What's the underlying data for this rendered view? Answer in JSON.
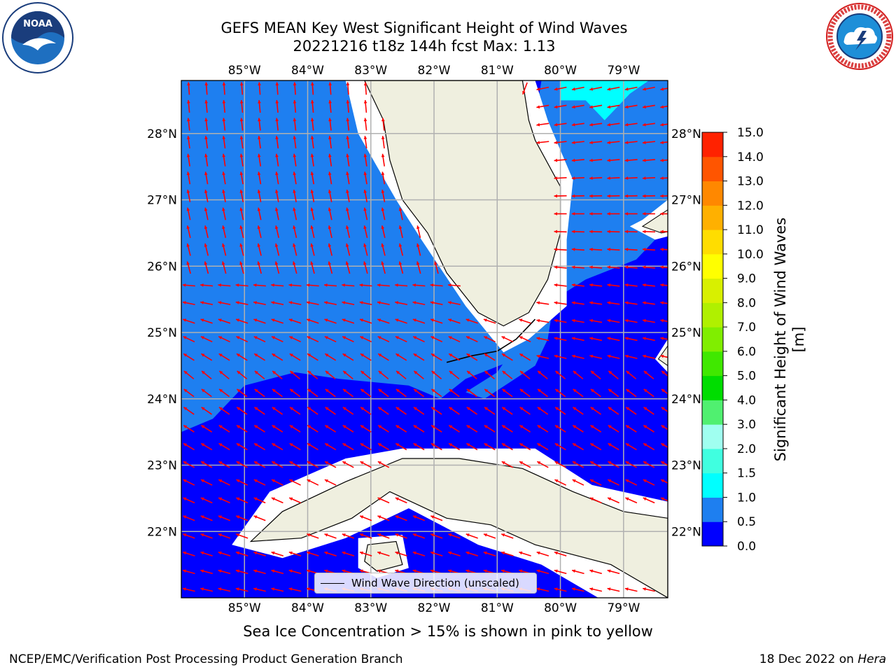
{
  "title_line1": "GEFS MEAN Key West Significant Height of Wind Waves",
  "title_line2": "20221216 t18z 144h fcst   Max: 1.13",
  "footnote": "Sea Ice Concentration > 15% is shown in pink to yellow",
  "credit_left": "NCEP/EMC/Verification Post Processing Product Generation Branch",
  "credit_right_date": "18 Dec 2022 on",
  "credit_right_machine": "Hera",
  "legend_label": "Wind Wave Direction (unscaled)",
  "colorbar_label": "Significant Height of Wind Waves [m]",
  "logos": {
    "left": "noaa-logo",
    "right": "national-weather-service-logo"
  },
  "chart_data": {
    "type": "heatmap",
    "title": "GEFS MEAN Key West Significant Height of Wind Waves",
    "subtitle": "20221216 t18z 144h fcst   Max: 1.13",
    "lon_range": [
      -86,
      -78.3
    ],
    "lat_range": [
      21.0,
      28.8
    ],
    "lon_ticks": [
      -85,
      -84,
      -83,
      -82,
      -81,
      -80,
      -79
    ],
    "lon_tick_labels": [
      "85°W",
      "84°W",
      "83°W",
      "82°W",
      "81°W",
      "80°W",
      "79°W"
    ],
    "lat_ticks": [
      22,
      23,
      24,
      25,
      26,
      27,
      28
    ],
    "lat_tick_labels": [
      "22°N",
      "23°N",
      "24°N",
      "25°N",
      "26°N",
      "27°N",
      "28°N"
    ],
    "grid": true,
    "colorbar": {
      "label": "Significant Height of Wind Waves [m]",
      "levels": [
        0.0,
        0.5,
        1.0,
        1.5,
        2.0,
        3.0,
        4.0,
        5.0,
        6.0,
        7.0,
        8.0,
        9.0,
        10.0,
        11.0,
        12.0,
        13.0,
        14.0,
        15.0
      ],
      "tick_labels": [
        "0.0",
        "0.5",
        "1.0",
        "1.5",
        "2.0",
        "3.0",
        "4.0",
        "5.0",
        "6.0",
        "7.0",
        "8.0",
        "9.0",
        "10.0",
        "11.0",
        "12.0",
        "13.0",
        "14.0",
        "15.0"
      ],
      "colors": [
        "#0000ff",
        "#1e7ff0",
        "#00ffff",
        "#40ffe0",
        "#a0fff0",
        "#50f070",
        "#00dd00",
        "#40e800",
        "#80ee00",
        "#b0f000",
        "#d8f000",
        "#ffff00",
        "#ffdd00",
        "#ffb000",
        "#ff8800",
        "#ff5500",
        "#ff2200"
      ]
    },
    "max_value": 1.13,
    "vector_field": "Wind Wave Direction (unscaled)",
    "vector_color": "#ff0000",
    "colors": {
      "land": "#efefdf",
      "low": "#0000ff",
      "mid": "#1e7ff0",
      "high": "#00ffff"
    }
  }
}
